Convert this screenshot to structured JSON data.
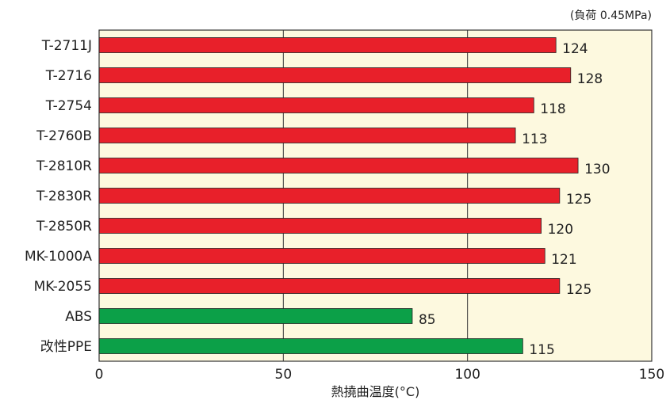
{
  "chart_data": {
    "type": "bar",
    "orientation": "horizontal",
    "title": "",
    "note": "(負荷 0.45MPa)",
    "xlabel": "熱撓曲温度(°C)",
    "ylabel": "",
    "xlim": [
      0,
      150
    ],
    "xticks": [
      0,
      50,
      100,
      150
    ],
    "grid": true,
    "categories": [
      "T-2711J",
      "T-2716",
      "T-2754",
      "T-2760B",
      "T-2810R",
      "T-2830R",
      "T-2850R",
      "MK-1000A",
      "MK-2055",
      "ABS",
      "改性PPE"
    ],
    "values": [
      124,
      128,
      118,
      113,
      130,
      125,
      120,
      121,
      125,
      85,
      115
    ],
    "bar_colors": [
      "#e8202a",
      "#e8202a",
      "#e8202a",
      "#e8202a",
      "#e8202a",
      "#e8202a",
      "#e8202a",
      "#e8202a",
      "#e8202a",
      "#0ca048",
      "#0ca048"
    ],
    "plot_background": "#fdf9df"
  }
}
